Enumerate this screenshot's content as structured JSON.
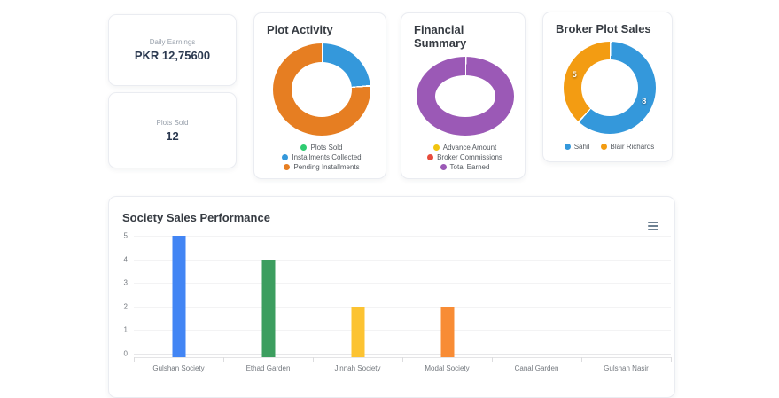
{
  "stat_cards": [
    {
      "label": "Daily Earnings",
      "value": "PKR 12,75600"
    },
    {
      "label": "Plots Sold",
      "value": "12"
    }
  ],
  "chart_data": [
    {
      "id": "plot-activity",
      "type": "pie",
      "subtype": "donut",
      "title": "Plot Activity",
      "legend_position": "bottom-vertical",
      "segments": [
        {
          "label": "Plots Sold",
          "color": "#2ecc71",
          "value_pct": 0
        },
        {
          "label": "Installments Collected",
          "color": "#3498db",
          "value_pct": 23.5
        },
        {
          "label": "Pending Installments",
          "color": "#e67e22",
          "value_pct": 76.5
        }
      ]
    },
    {
      "id": "financial-summary",
      "type": "pie",
      "subtype": "donut",
      "title": "Financial Summary",
      "legend_position": "bottom-vertical",
      "segments": [
        {
          "label": "Advance Amount",
          "color": "#f1c40f",
          "value_pct": 0
        },
        {
          "label": "Broker Commissions",
          "color": "#e74c3c",
          "value_pct": 0
        },
        {
          "label": "Total Earned",
          "color": "#9b59b6",
          "value_pct": 100
        }
      ]
    },
    {
      "id": "broker-plot-sales",
      "type": "pie",
      "subtype": "donut",
      "title": "Broker Plot Sales",
      "legend_position": "bottom-horizontal",
      "segments": [
        {
          "label": "Sahil",
          "color": "#3498db",
          "value_pct": 61.5,
          "data_label": "8"
        },
        {
          "label": "Blair Richards",
          "color": "#f39c12",
          "value_pct": 38.5,
          "data_label": "5"
        }
      ]
    },
    {
      "id": "society-sales-performance",
      "type": "bar",
      "title": "Society Sales Performance",
      "categories": [
        "Gulshan Society",
        "Ethad Garden",
        "Jinnah Society",
        "Modal Society",
        "Canal Garden",
        "Gulshan Nasir"
      ],
      "values": [
        5,
        4,
        2,
        2,
        0,
        0
      ],
      "bar_colors": [
        "#4285f4",
        "#3c9e5f",
        "#fcc332",
        "#f88c35",
        "#4285f4",
        "#3c9e5f"
      ],
      "ylim": [
        0,
        5
      ],
      "yticks": [
        5,
        4,
        3,
        2,
        1,
        0
      ],
      "grid": true,
      "legend": "none",
      "toolbar_icon": "hamburger-menu-icon"
    }
  ]
}
